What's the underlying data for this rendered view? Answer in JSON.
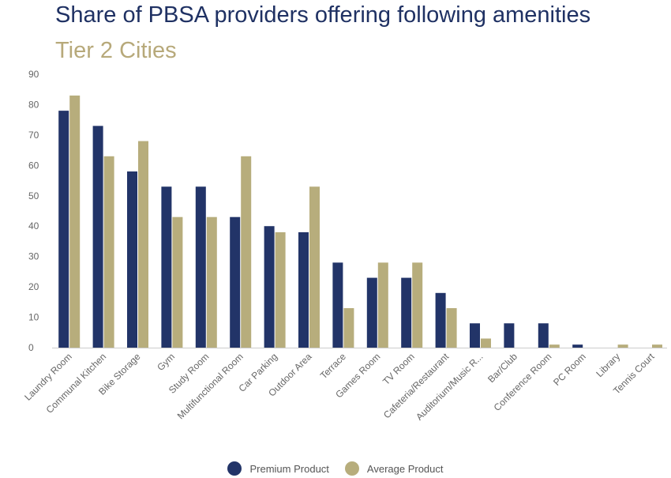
{
  "title": "Share of PBSA providers offering following amenities",
  "subtitle": "Tier 2 Cities",
  "colors": {
    "title": "#1f3163",
    "subtitle": "#b7a97a",
    "premium": "#223468",
    "average": "#b7ad7c",
    "axis_text": "#666666",
    "baseline": "#cccccc"
  },
  "chart_data": {
    "type": "bar",
    "categories": [
      "Laundry Room",
      "Communal Kitchen",
      "Bike Storage",
      "Gym",
      "Study Room",
      "Multifunctional Room",
      "Car Parking",
      "Outdoor Area",
      "Terrace",
      "Games Room",
      "TV Room",
      "Cafeteria/Restaurant",
      "Auditorium/Music R...",
      "Bar/Club",
      "Conference Room",
      "PC Room",
      "Library",
      "Tennis Court"
    ],
    "series": [
      {
        "name": "Premium Product",
        "values": [
          78,
          73,
          58,
          53,
          53,
          43,
          40,
          38,
          28,
          23,
          23,
          18,
          8,
          8,
          8,
          1,
          0,
          0
        ]
      },
      {
        "name": "Average Product",
        "values": [
          83,
          63,
          68,
          43,
          43,
          63,
          38,
          53,
          13,
          28,
          28,
          13,
          3,
          0,
          1,
          0,
          1,
          1
        ]
      }
    ],
    "yticks": [
      "0",
      "10",
      "20",
      "30",
      "40",
      "50",
      "60",
      "70",
      "80",
      "90"
    ],
    "ylim": [
      0,
      90
    ],
    "grid": false,
    "legend_position": "bottom-center",
    "title": "Share of PBSA providers offering following amenities",
    "subtitle": "Tier 2 Cities",
    "xlabel": "",
    "ylabel": ""
  },
  "legend": {
    "premium_label": "Premium Product",
    "average_label": "Average Product"
  }
}
